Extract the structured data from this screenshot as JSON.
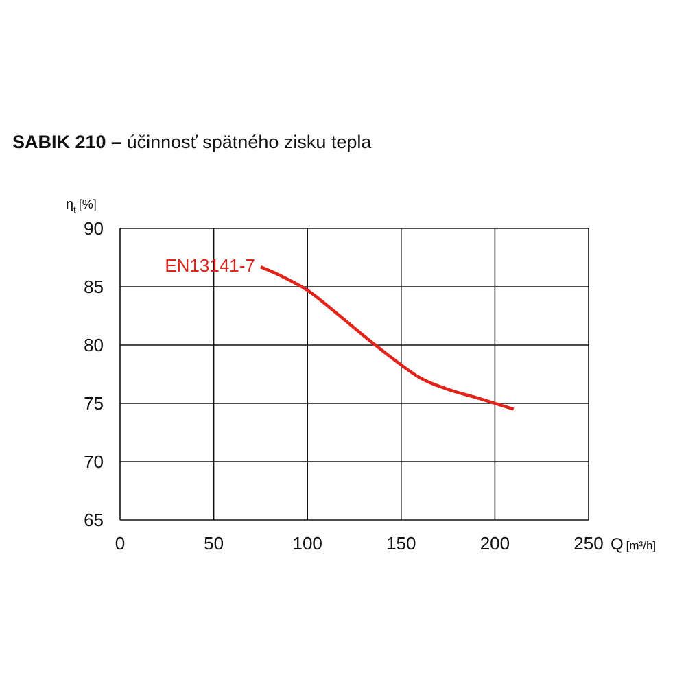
{
  "title_bold": "SABIK 210 –",
  "title_rest": " účinnosť spätného zisku tepla",
  "chart_data": {
    "type": "line",
    "ylabel_symbol": "η",
    "ylabel_sub": "t",
    "ylabel_unit": "[%]",
    "xlabel": "Q",
    "xlabel_unit": "[m³/h]",
    "xlim": [
      0,
      250
    ],
    "ylim": [
      65,
      90
    ],
    "xticks": [
      0,
      50,
      100,
      150,
      200,
      250
    ],
    "yticks": [
      65,
      70,
      75,
      80,
      85,
      90
    ],
    "grid": true,
    "series": [
      {
        "name": "EN13141-7",
        "color": "#e2231a",
        "x": [
          75,
          85,
          100,
          115,
          130,
          145,
          160,
          175,
          190,
          200,
          210
        ],
        "y": [
          86.7,
          86.0,
          84.7,
          82.8,
          80.8,
          78.9,
          77.2,
          76.2,
          75.5,
          75.0,
          74.5
        ]
      }
    ]
  }
}
